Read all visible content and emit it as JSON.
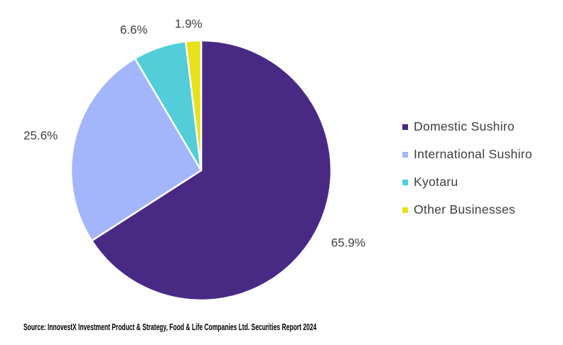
{
  "chart_data": {
    "type": "pie",
    "title": "",
    "direction": "clockwise",
    "start_angle_deg": 0,
    "legend_position": "right",
    "data_labels": "percent-outside",
    "slices": [
      {
        "label": "Domestic Sushiro",
        "value": 65.9,
        "display": "65.9%",
        "color": "#482a85"
      },
      {
        "label": "International Sushiro",
        "value": 25.6,
        "display": "25.6%",
        "color": "#a3b6fb"
      },
      {
        "label": "Kyotaru",
        "value": 6.6,
        "display": "6.6%",
        "color": "#52cdd9"
      },
      {
        "label": "Other Businesses",
        "value": 1.9,
        "display": "1.9%",
        "color": "#e7e11b"
      }
    ]
  },
  "colors": {
    "background": "#ffffff",
    "slice_border": "#ffffff",
    "label_text": "#3f3f3f",
    "legend_text": "#3d3d3d",
    "source_text": "#000000"
  },
  "source_note": "Source: InnovestX Investment Product & Strategy, Food & Life Companies Ltd. Securities Report 2024"
}
